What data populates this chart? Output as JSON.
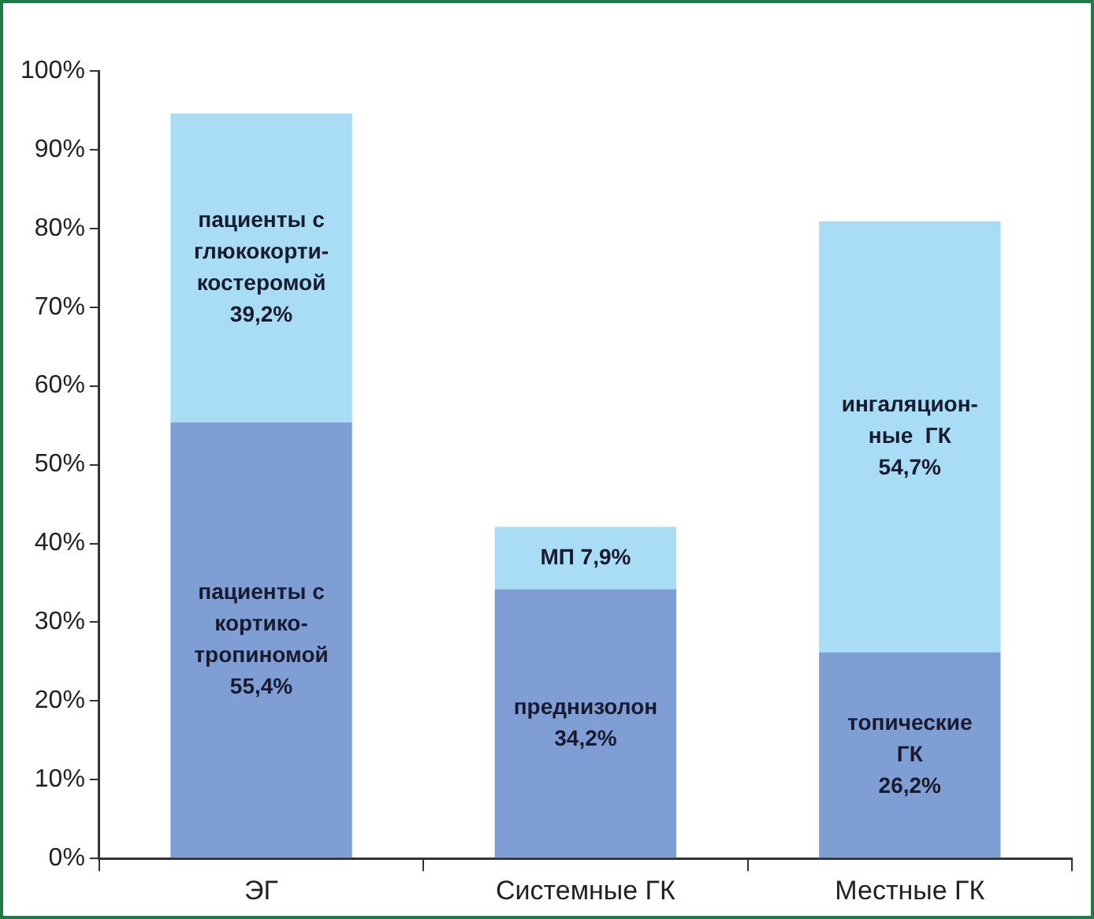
{
  "chart_data": {
    "type": "bar",
    "stacked": true,
    "categories": [
      "ЭГ",
      "Системные ГК",
      "Местные ГК"
    ],
    "series": [
      {
        "color": "#7f9fd4",
        "values": [
          55.4,
          34.2,
          26.2
        ],
        "value_labels": [
          "пациенты с\nкортико-\nтропиномой\n55,4%",
          "преднизолон\n34,2%",
          "топические\nГК\n26,2%"
        ]
      },
      {
        "color": "#a9ddf5",
        "values": [
          39.2,
          7.9,
          54.7
        ],
        "value_labels": [
          "пациенты с\nглюкокорти-\nкостеромой\n39,2%",
          "МП 7,9%",
          "ингаляцион-\nные  ГК\n54,7%"
        ]
      }
    ],
    "ylim": [
      0,
      100
    ],
    "yticks": [
      {
        "value": 0,
        "label": "0%"
      },
      {
        "value": 10,
        "label": "10%"
      },
      {
        "value": 20,
        "label": "20%"
      },
      {
        "value": 30,
        "label": "30%"
      },
      {
        "value": 40,
        "label": "40%"
      },
      {
        "value": 50,
        "label": "50%"
      },
      {
        "value": 60,
        "label": "60%"
      },
      {
        "value": 70,
        "label": "70%"
      },
      {
        "value": 80,
        "label": "80%"
      },
      {
        "value": 90,
        "label": "90%"
      },
      {
        "value": 100,
        "label": "100%"
      }
    ],
    "grid": false,
    "legend": false
  }
}
